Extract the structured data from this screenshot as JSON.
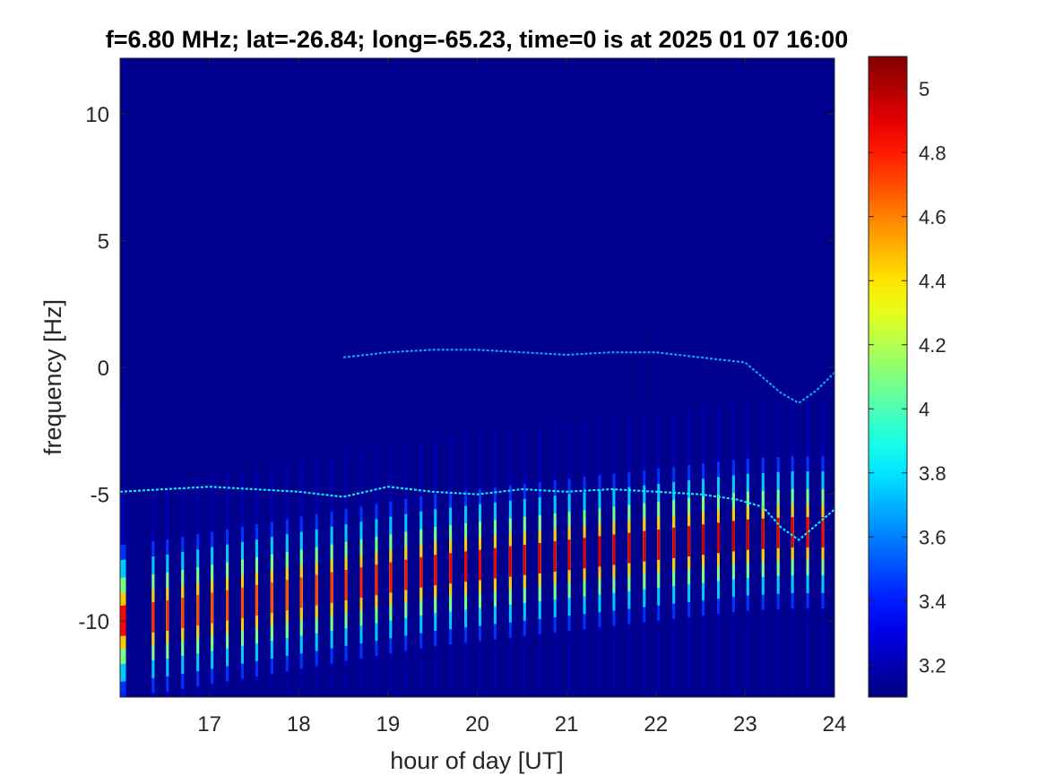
{
  "chart_data": {
    "type": "heatmap",
    "title": "f=6.80 MHz;  lat=-26.84; long=-65.23, time=0 is at 2025 01 07 16:00",
    "xlabel": "hour of day [UT]",
    "ylabel": "frequency [Hz]",
    "xlim": [
      16,
      24
    ],
    "ylim": [
      -13,
      12.2
    ],
    "xticks": [
      17,
      18,
      19,
      20,
      21,
      22,
      23,
      24
    ],
    "yticks": [
      -10,
      -5,
      0,
      5,
      10
    ],
    "colorbar": {
      "colormap": "jet",
      "clim": [
        3.1,
        5.1
      ],
      "ticks": [
        3.2,
        3.4,
        3.6,
        3.8,
        4,
        4.2,
        4.4,
        4.6,
        4.8,
        5
      ],
      "background_color": "#00008f"
    },
    "features": {
      "stripe_hours": [
        16.02,
        16.05,
        16.37,
        16.53,
        16.7,
        16.87,
        17.03,
        17.2,
        17.37,
        17.53,
        17.7,
        17.87,
        18.03,
        18.2,
        18.37,
        18.53,
        18.7,
        18.87,
        19.03,
        19.2,
        19.37,
        19.53,
        19.7,
        19.87,
        20.03,
        20.2,
        20.37,
        20.53,
        20.7,
        20.87,
        21.03,
        21.2,
        21.37,
        21.53,
        21.7,
        21.87,
        22.03,
        22.2,
        22.37,
        22.53,
        22.7,
        22.87,
        23.03,
        23.2,
        23.37,
        23.53,
        23.7,
        23.87
      ],
      "main_band": {
        "hours": [
          16.0,
          16.5,
          17.0,
          17.5,
          18.0,
          18.5,
          19.0,
          19.5,
          20.0,
          20.5,
          21.0,
          21.5,
          22.0,
          22.5,
          23.0,
          23.5,
          24.0
        ],
        "center": [
          -10.0,
          -9.8,
          -9.5,
          -9.2,
          -8.9,
          -8.6,
          -8.3,
          -8.0,
          -7.8,
          -7.6,
          -7.4,
          -7.2,
          -7.0,
          -6.8,
          -6.6,
          -6.5,
          -6.5
        ],
        "peak": [
          4.85,
          4.75,
          4.7,
          4.7,
          4.7,
          4.75,
          4.8,
          4.85,
          4.85,
          4.9,
          4.9,
          4.9,
          4.9,
          4.95,
          4.95,
          4.9,
          4.8
        ]
      },
      "trace_lower": {
        "hours": [
          16.0,
          16.5,
          17.0,
          17.5,
          18.0,
          18.5,
          19.0,
          19.5,
          20.0,
          20.5,
          21.0,
          21.5,
          22.0,
          22.5,
          22.9,
          23.2,
          23.4,
          23.6,
          23.8,
          24.0
        ],
        "freq": [
          -4.9,
          -4.8,
          -4.7,
          -4.8,
          -4.9,
          -5.1,
          -4.7,
          -4.9,
          -5.0,
          -4.8,
          -4.9,
          -4.8,
          -4.9,
          -5.0,
          -5.2,
          -5.5,
          -6.3,
          -6.8,
          -6.2,
          -5.6
        ]
      },
      "trace_upper": {
        "hours": [
          18.5,
          19.0,
          19.5,
          20.0,
          20.5,
          21.0,
          21.5,
          22.0,
          22.5,
          23.0,
          23.2,
          23.4,
          23.6,
          23.8,
          24.0
        ],
        "freq": [
          0.4,
          0.6,
          0.7,
          0.7,
          0.6,
          0.5,
          0.6,
          0.6,
          0.4,
          0.2,
          -0.4,
          -1.0,
          -1.4,
          -0.9,
          -0.2
        ]
      }
    }
  }
}
